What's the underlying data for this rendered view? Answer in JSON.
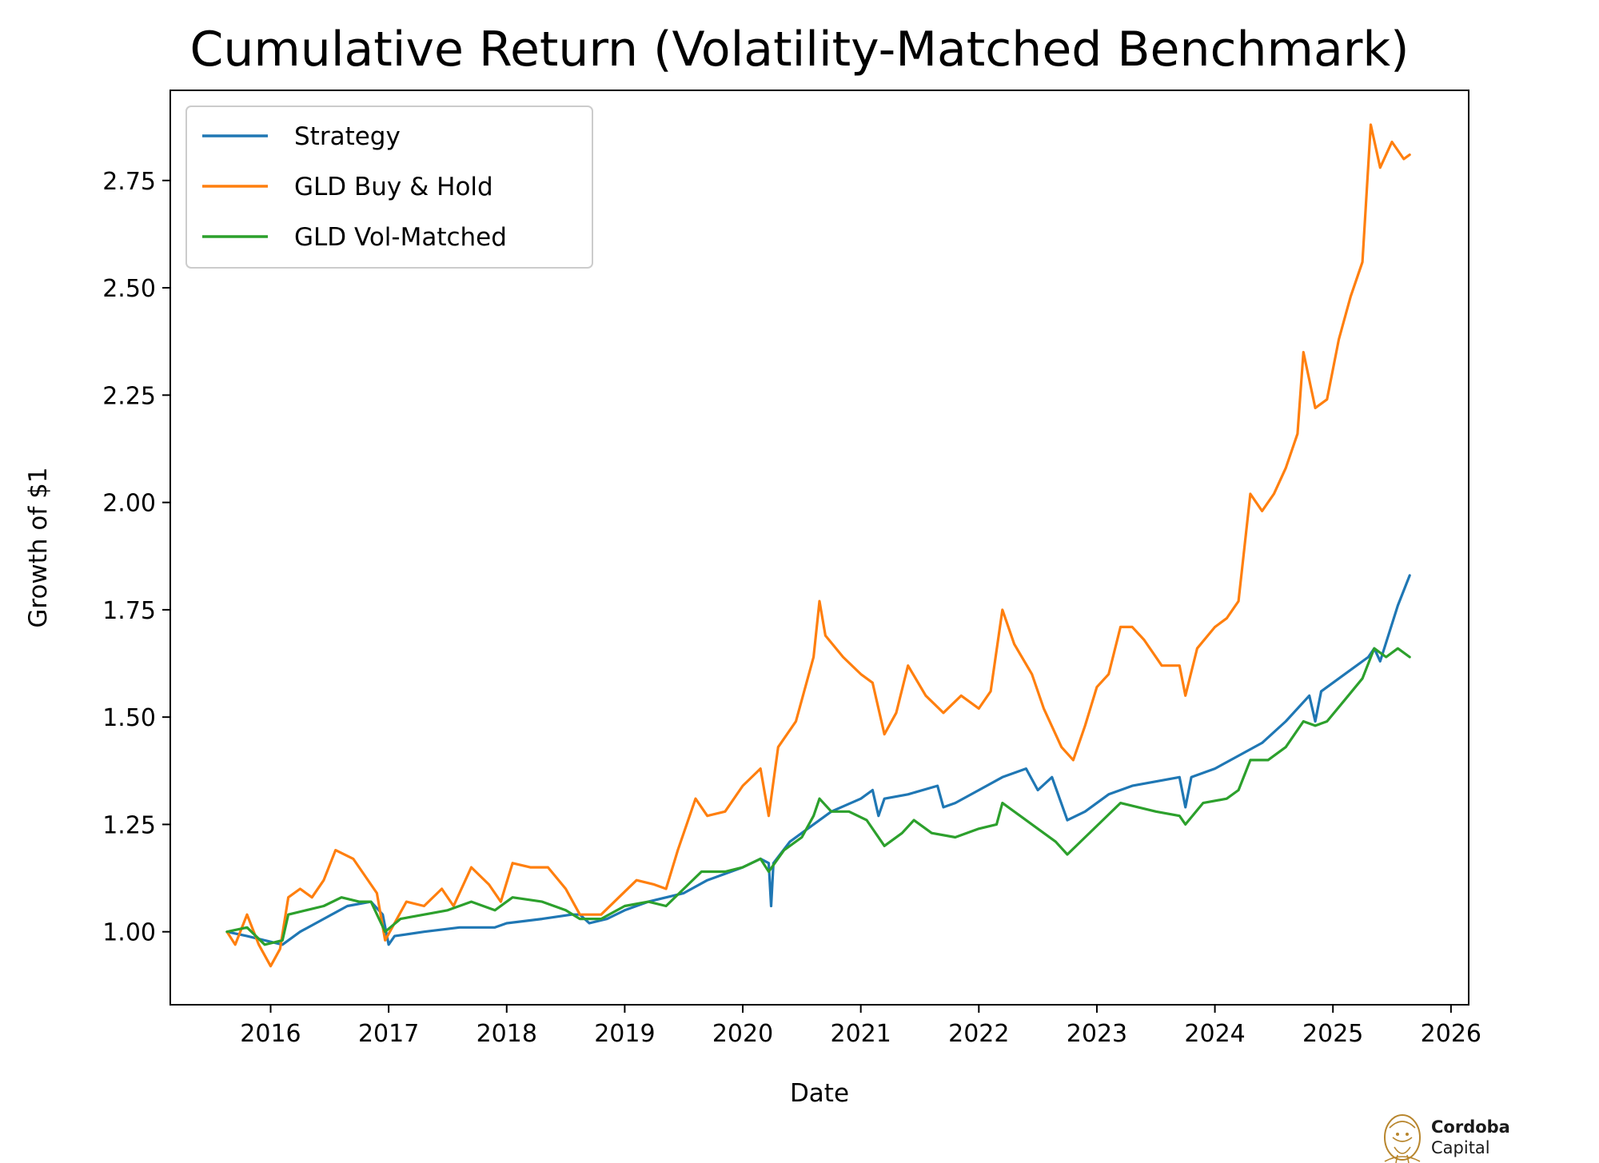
{
  "chart_data": {
    "type": "line",
    "title": "Cumulative Return (Volatility-Matched Benchmark)",
    "xlabel": "Date",
    "ylabel": "Growth of $1",
    "xlim": [
      2015.15,
      2026.15
    ],
    "ylim": [
      0.83,
      2.96
    ],
    "x_ticks": [
      2016,
      2017,
      2018,
      2019,
      2020,
      2021,
      2022,
      2023,
      2024,
      2025,
      2026
    ],
    "y_ticks": [
      1.0,
      1.25,
      1.5,
      1.75,
      2.0,
      2.25,
      2.5,
      2.75
    ],
    "y_tick_labels": [
      "1.00",
      "1.25",
      "1.50",
      "1.75",
      "2.00",
      "2.25",
      "2.50",
      "2.75"
    ],
    "grid": false,
    "legend_position": "upper-left",
    "series": [
      {
        "name": "Strategy",
        "color": "#1f77b4",
        "points": [
          [
            2015.63,
            1.0
          ],
          [
            2015.8,
            0.99
          ],
          [
            2015.95,
            0.98
          ],
          [
            2016.1,
            0.97
          ],
          [
            2016.25,
            1.0
          ],
          [
            2016.45,
            1.03
          ],
          [
            2016.65,
            1.06
          ],
          [
            2016.85,
            1.07
          ],
          [
            2016.95,
            1.04
          ],
          [
            2017.0,
            0.97
          ],
          [
            2017.05,
            0.99
          ],
          [
            2017.3,
            1.0
          ],
          [
            2017.6,
            1.01
          ],
          [
            2017.9,
            1.01
          ],
          [
            2018.0,
            1.02
          ],
          [
            2018.3,
            1.03
          ],
          [
            2018.55,
            1.04
          ],
          [
            2018.62,
            1.04
          ],
          [
            2018.7,
            1.02
          ],
          [
            2018.85,
            1.03
          ],
          [
            2019.0,
            1.05
          ],
          [
            2019.2,
            1.07
          ],
          [
            2019.5,
            1.09
          ],
          [
            2019.7,
            1.12
          ],
          [
            2019.9,
            1.14
          ],
          [
            2020.0,
            1.15
          ],
          [
            2020.15,
            1.17
          ],
          [
            2020.22,
            1.16
          ],
          [
            2020.24,
            1.06
          ],
          [
            2020.26,
            1.16
          ],
          [
            2020.4,
            1.21
          ],
          [
            2020.6,
            1.25
          ],
          [
            2020.75,
            1.28
          ],
          [
            2021.0,
            1.31
          ],
          [
            2021.1,
            1.33
          ],
          [
            2021.15,
            1.27
          ],
          [
            2021.2,
            1.31
          ],
          [
            2021.4,
            1.32
          ],
          [
            2021.65,
            1.34
          ],
          [
            2021.7,
            1.29
          ],
          [
            2021.8,
            1.3
          ],
          [
            2022.0,
            1.33
          ],
          [
            2022.2,
            1.36
          ],
          [
            2022.4,
            1.38
          ],
          [
            2022.5,
            1.33
          ],
          [
            2022.62,
            1.36
          ],
          [
            2022.75,
            1.26
          ],
          [
            2022.9,
            1.28
          ],
          [
            2023.1,
            1.32
          ],
          [
            2023.3,
            1.34
          ],
          [
            2023.5,
            1.35
          ],
          [
            2023.7,
            1.36
          ],
          [
            2023.75,
            1.29
          ],
          [
            2023.8,
            1.36
          ],
          [
            2024.0,
            1.38
          ],
          [
            2024.2,
            1.41
          ],
          [
            2024.4,
            1.44
          ],
          [
            2024.6,
            1.49
          ],
          [
            2024.8,
            1.55
          ],
          [
            2024.85,
            1.49
          ],
          [
            2024.9,
            1.56
          ],
          [
            2025.1,
            1.6
          ],
          [
            2025.3,
            1.64
          ],
          [
            2025.35,
            1.66
          ],
          [
            2025.4,
            1.63
          ],
          [
            2025.55,
            1.76
          ],
          [
            2025.65,
            1.83
          ]
        ]
      },
      {
        "name": "GLD Buy & Hold",
        "color": "#ff7f0e",
        "points": [
          [
            2015.63,
            1.0
          ],
          [
            2015.7,
            0.97
          ],
          [
            2015.8,
            1.04
          ],
          [
            2015.9,
            0.97
          ],
          [
            2016.0,
            0.92
          ],
          [
            2016.08,
            0.96
          ],
          [
            2016.15,
            1.08
          ],
          [
            2016.25,
            1.1
          ],
          [
            2016.35,
            1.08
          ],
          [
            2016.45,
            1.12
          ],
          [
            2016.55,
            1.19
          ],
          [
            2016.7,
            1.17
          ],
          [
            2016.8,
            1.13
          ],
          [
            2016.9,
            1.09
          ],
          [
            2016.97,
            0.98
          ],
          [
            2017.05,
            1.02
          ],
          [
            2017.15,
            1.07
          ],
          [
            2017.3,
            1.06
          ],
          [
            2017.45,
            1.1
          ],
          [
            2017.55,
            1.06
          ],
          [
            2017.7,
            1.15
          ],
          [
            2017.85,
            1.11
          ],
          [
            2017.95,
            1.07
          ],
          [
            2018.05,
            1.16
          ],
          [
            2018.2,
            1.15
          ],
          [
            2018.35,
            1.15
          ],
          [
            2018.5,
            1.1
          ],
          [
            2018.62,
            1.04
          ],
          [
            2018.8,
            1.04
          ],
          [
            2018.95,
            1.08
          ],
          [
            2019.1,
            1.12
          ],
          [
            2019.25,
            1.11
          ],
          [
            2019.35,
            1.1
          ],
          [
            2019.45,
            1.19
          ],
          [
            2019.6,
            1.31
          ],
          [
            2019.7,
            1.27
          ],
          [
            2019.85,
            1.28
          ],
          [
            2020.0,
            1.34
          ],
          [
            2020.15,
            1.38
          ],
          [
            2020.22,
            1.27
          ],
          [
            2020.3,
            1.43
          ],
          [
            2020.45,
            1.49
          ],
          [
            2020.6,
            1.64
          ],
          [
            2020.65,
            1.77
          ],
          [
            2020.7,
            1.69
          ],
          [
            2020.85,
            1.64
          ],
          [
            2021.0,
            1.6
          ],
          [
            2021.1,
            1.58
          ],
          [
            2021.2,
            1.46
          ],
          [
            2021.3,
            1.51
          ],
          [
            2021.4,
            1.62
          ],
          [
            2021.55,
            1.55
          ],
          [
            2021.7,
            1.51
          ],
          [
            2021.85,
            1.55
          ],
          [
            2022.0,
            1.52
          ],
          [
            2022.1,
            1.56
          ],
          [
            2022.2,
            1.75
          ],
          [
            2022.3,
            1.67
          ],
          [
            2022.45,
            1.6
          ],
          [
            2022.55,
            1.52
          ],
          [
            2022.7,
            1.43
          ],
          [
            2022.8,
            1.4
          ],
          [
            2022.9,
            1.48
          ],
          [
            2023.0,
            1.57
          ],
          [
            2023.1,
            1.6
          ],
          [
            2023.2,
            1.71
          ],
          [
            2023.3,
            1.71
          ],
          [
            2023.4,
            1.68
          ],
          [
            2023.55,
            1.62
          ],
          [
            2023.7,
            1.62
          ],
          [
            2023.75,
            1.55
          ],
          [
            2023.85,
            1.66
          ],
          [
            2024.0,
            1.71
          ],
          [
            2024.1,
            1.73
          ],
          [
            2024.2,
            1.77
          ],
          [
            2024.3,
            2.02
          ],
          [
            2024.4,
            1.98
          ],
          [
            2024.5,
            2.02
          ],
          [
            2024.6,
            2.08
          ],
          [
            2024.7,
            2.16
          ],
          [
            2024.75,
            2.35
          ],
          [
            2024.85,
            2.22
          ],
          [
            2024.95,
            2.24
          ],
          [
            2025.05,
            2.38
          ],
          [
            2025.15,
            2.48
          ],
          [
            2025.25,
            2.56
          ],
          [
            2025.32,
            2.88
          ],
          [
            2025.4,
            2.78
          ],
          [
            2025.5,
            2.84
          ],
          [
            2025.6,
            2.8
          ],
          [
            2025.65,
            2.81
          ]
        ]
      },
      {
        "name": "GLD Vol-Matched",
        "color": "#2ca02c",
        "points": [
          [
            2015.63,
            1.0
          ],
          [
            2015.8,
            1.01
          ],
          [
            2015.95,
            0.97
          ],
          [
            2016.1,
            0.98
          ],
          [
            2016.15,
            1.04
          ],
          [
            2016.3,
            1.05
          ],
          [
            2016.45,
            1.06
          ],
          [
            2016.6,
            1.08
          ],
          [
            2016.75,
            1.07
          ],
          [
            2016.85,
            1.07
          ],
          [
            2016.97,
            1.0
          ],
          [
            2017.1,
            1.03
          ],
          [
            2017.3,
            1.04
          ],
          [
            2017.5,
            1.05
          ],
          [
            2017.7,
            1.07
          ],
          [
            2017.9,
            1.05
          ],
          [
            2018.05,
            1.08
          ],
          [
            2018.3,
            1.07
          ],
          [
            2018.5,
            1.05
          ],
          [
            2018.62,
            1.03
          ],
          [
            2018.8,
            1.03
          ],
          [
            2019.0,
            1.06
          ],
          [
            2019.2,
            1.07
          ],
          [
            2019.35,
            1.06
          ],
          [
            2019.5,
            1.1
          ],
          [
            2019.65,
            1.14
          ],
          [
            2019.85,
            1.14
          ],
          [
            2020.0,
            1.15
          ],
          [
            2020.15,
            1.17
          ],
          [
            2020.22,
            1.14
          ],
          [
            2020.35,
            1.19
          ],
          [
            2020.5,
            1.22
          ],
          [
            2020.6,
            1.27
          ],
          [
            2020.65,
            1.31
          ],
          [
            2020.75,
            1.28
          ],
          [
            2020.9,
            1.28
          ],
          [
            2021.05,
            1.26
          ],
          [
            2021.2,
            1.2
          ],
          [
            2021.35,
            1.23
          ],
          [
            2021.45,
            1.26
          ],
          [
            2021.6,
            1.23
          ],
          [
            2021.8,
            1.22
          ],
          [
            2022.0,
            1.24
          ],
          [
            2022.15,
            1.25
          ],
          [
            2022.2,
            1.3
          ],
          [
            2022.35,
            1.27
          ],
          [
            2022.5,
            1.24
          ],
          [
            2022.65,
            1.21
          ],
          [
            2022.75,
            1.18
          ],
          [
            2022.9,
            1.22
          ],
          [
            2023.05,
            1.26
          ],
          [
            2023.2,
            1.3
          ],
          [
            2023.35,
            1.29
          ],
          [
            2023.5,
            1.28
          ],
          [
            2023.7,
            1.27
          ],
          [
            2023.75,
            1.25
          ],
          [
            2023.9,
            1.3
          ],
          [
            2024.1,
            1.31
          ],
          [
            2024.2,
            1.33
          ],
          [
            2024.3,
            1.4
          ],
          [
            2024.45,
            1.4
          ],
          [
            2024.6,
            1.43
          ],
          [
            2024.75,
            1.49
          ],
          [
            2024.85,
            1.48
          ],
          [
            2024.95,
            1.49
          ],
          [
            2025.1,
            1.54
          ],
          [
            2025.25,
            1.59
          ],
          [
            2025.35,
            1.66
          ],
          [
            2025.45,
            1.64
          ],
          [
            2025.55,
            1.66
          ],
          [
            2025.65,
            1.64
          ]
        ]
      }
    ]
  },
  "logo": {
    "line1": "Cordoba",
    "line2": "Capital",
    "color": "#b8862e"
  }
}
